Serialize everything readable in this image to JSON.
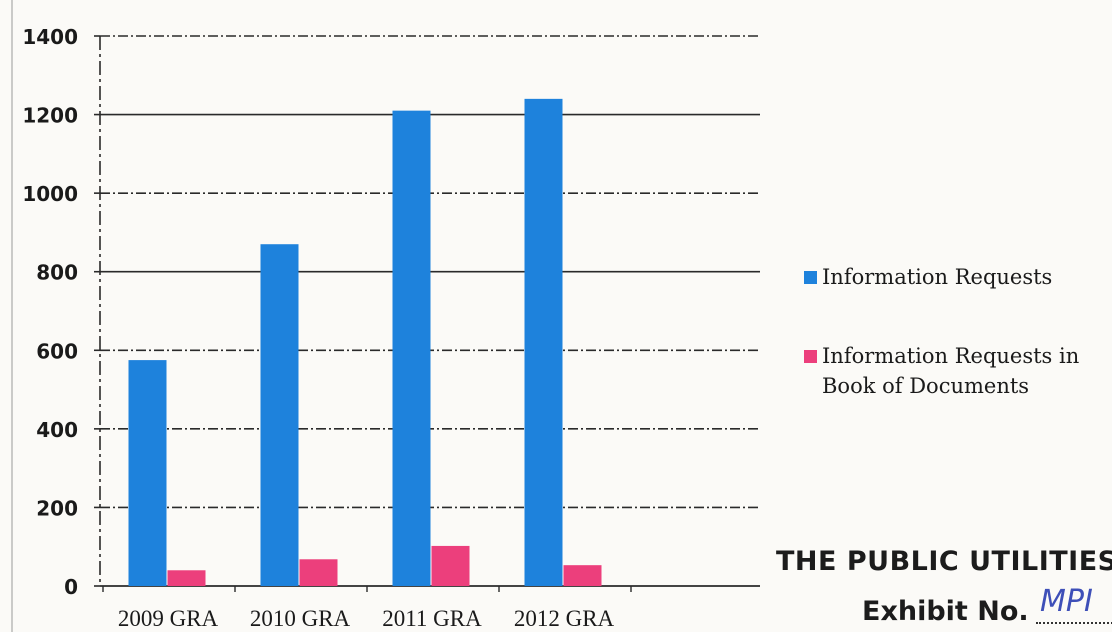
{
  "chart_data": {
    "type": "bar",
    "categories": [
      "2009 GRA",
      "2010 GRA",
      "2011 GRA",
      "2012 GRA"
    ],
    "series": [
      {
        "name": "Information Requests",
        "values": [
          575,
          870,
          1210,
          1240
        ],
        "color": "#1e82dc"
      },
      {
        "name": "Information Requests in Book of Documents",
        "values": [
          40,
          68,
          102,
          53
        ],
        "color": "#ec3f7c"
      }
    ],
    "ylim": [
      0,
      1400
    ],
    "yticks": [
      0,
      200,
      400,
      600,
      800,
      1000,
      1200,
      1400
    ],
    "grid": true,
    "legend_position": "right"
  },
  "stamp": {
    "line1": "THE PUBLIC UTILITIES",
    "line2": "Exhibit No.",
    "handwritten": "MPI"
  }
}
